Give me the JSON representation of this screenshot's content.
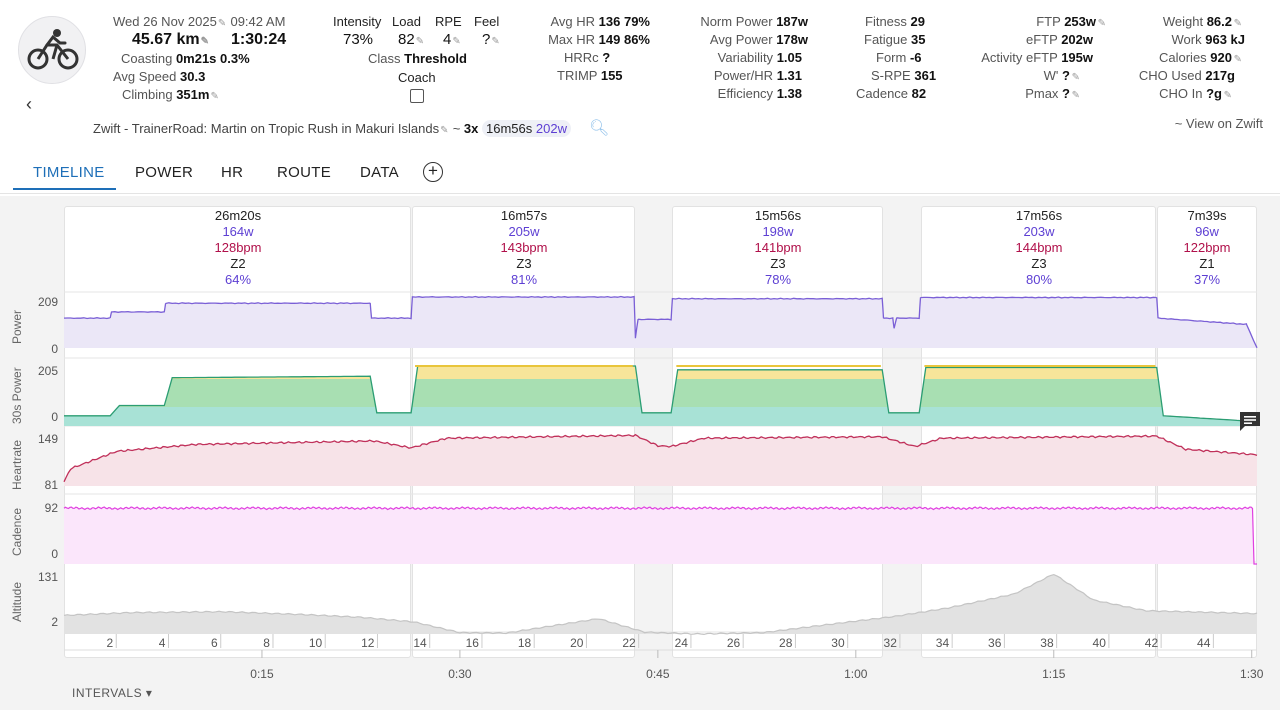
{
  "header": {
    "date": "Wed 26 Nov 2025",
    "time": "09:42 AM",
    "distance": "45.67 km",
    "duration": "1:30:24",
    "coasting_label": "Coasting",
    "coasting_value": "0m21s 0.3%",
    "avg_speed_label": "Avg Speed",
    "avg_speed_value": "30.3",
    "climbing_label": "Climbing",
    "climbing_value": "351m",
    "intensity_label": "Intensity",
    "intensity_value": "73%",
    "load_label": "Load",
    "load_value": "82",
    "rpe_label": "RPE",
    "rpe_value": "4",
    "feel_label": "Feel",
    "feel_value": "?",
    "class_label": "Class",
    "class_value": "Threshold",
    "coach_label": "Coach",
    "avg_hr_label": "Avg HR",
    "avg_hr_value": "136 79%",
    "max_hr_label": "Max HR",
    "max_hr_value": "149 86%",
    "hrrc_label": "HRRc",
    "hrrc_value": "?",
    "trimp_label": "TRIMP",
    "trimp_value": "155",
    "norm_power_label": "Norm Power",
    "norm_power_value": "187w",
    "avg_power_label": "Avg Power",
    "avg_power_value": "178w",
    "variability_label": "Variability",
    "variability_value": "1.05",
    "power_hr_label": "Power/HR",
    "power_hr_value": "1.31",
    "efficiency_label": "Efficiency",
    "efficiency_value": "1.38",
    "fitness_label": "Fitness",
    "fitness_value": "29",
    "fatigue_label": "Fatigue",
    "fatigue_value": "35",
    "form_label": "Form",
    "form_value": "-6",
    "srpe_label": "S-RPE",
    "srpe_value": "361",
    "cadence_label": "Cadence",
    "cadence_value": "82",
    "ftp_label": "FTP",
    "ftp_value": "253w",
    "eftp_label": "eFTP",
    "eftp_value": "202w",
    "activity_eftp_label": "Activity eFTP",
    "activity_eftp_value": "195w",
    "wprime_label": "W'",
    "wprime_value": "?",
    "pmax_label": "Pmax",
    "pmax_value": "?",
    "weight_label": "Weight",
    "weight_value": "86.2",
    "work_label": "Work",
    "work_value": "963 kJ",
    "calories_label": "Calories",
    "calories_value": "920",
    "cho_used_label": "CHO Used",
    "cho_used_value": "217g",
    "cho_in_label": "CHO In",
    "cho_in_value": "?g"
  },
  "activity": {
    "name": "Zwift - TrainerRoad: Martin on Tropic Rush in Makuri Islands",
    "tilde": "~",
    "repeat": "3x",
    "interval_dur": "16m56s",
    "interval_pw": "202w",
    "view_link": "~ View on Zwift"
  },
  "tabs": [
    "TIMELINE",
    "POWER",
    "HR",
    "ROUTE",
    "DATA"
  ],
  "intervals_label": "INTERVALS",
  "colors": {
    "accent": "#1e6fb8",
    "power": "#7a5fd6",
    "hr": "#c0305a",
    "cadence": "#e040e0",
    "z2": "#3fb85a",
    "z3": "#f5d44a",
    "teal": "#3fb8a0"
  },
  "chart_data": {
    "type": "line",
    "x_unit": "minutes",
    "x_range": [
      0,
      90.4
    ],
    "time_ticks": [
      "0:15",
      "0:30",
      "0:45",
      "1:00",
      "1:15",
      "1:30"
    ],
    "km_ticks": [
      "2",
      "4",
      "6",
      "8",
      "10",
      "12",
      "14",
      "16",
      "18",
      "20",
      "22",
      "24",
      "26",
      "28",
      "30",
      "32",
      "34",
      "36",
      "38",
      "40",
      "42",
      "44"
    ],
    "panels": [
      {
        "name": "Power",
        "ticks": [
          "209",
          "0"
        ]
      },
      {
        "name": "30s Power",
        "ticks": [
          "205",
          "0"
        ]
      },
      {
        "name": "Heartrate",
        "ticks": [
          "149",
          "81"
        ]
      },
      {
        "name": "Cadence",
        "ticks": [
          "92",
          "0"
        ]
      },
      {
        "name": "Altitude",
        "ticks": [
          "131",
          "2"
        ]
      }
    ],
    "intervals": [
      {
        "duration": "26m20s",
        "power": "164w",
        "hr": "128bpm",
        "zone": "Z2",
        "pct": "64%",
        "start_min": 0,
        "end_min": 26.3
      },
      {
        "duration": "16m57s",
        "power": "205w",
        "hr": "143bpm",
        "zone": "Z3",
        "pct": "81%",
        "start_min": 26.3,
        "end_min": 43.3
      },
      {
        "duration": "15m56s",
        "power": "198w",
        "hr": "141bpm",
        "zone": "Z3",
        "pct": "78%",
        "start_min": 46.0,
        "end_min": 62.0
      },
      {
        "duration": "17m56s",
        "power": "203w",
        "hr": "144bpm",
        "zone": "Z3",
        "pct": "80%",
        "start_min": 64.8,
        "end_min": 82.8
      },
      {
        "duration": "7m39s",
        "power": "96w",
        "hr": "122bpm",
        "zone": "Z1",
        "pct": "37%",
        "start_min": 82.8,
        "end_min": 90.4
      }
    ]
  }
}
